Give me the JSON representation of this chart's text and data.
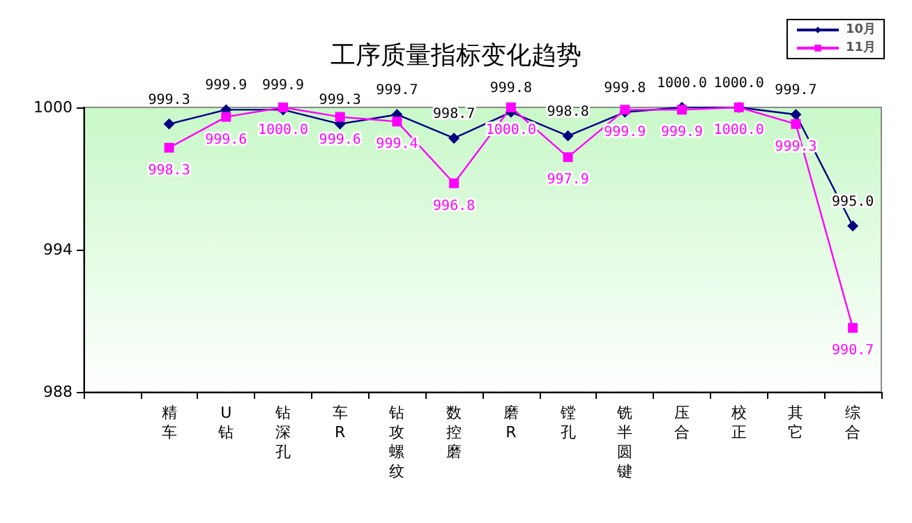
{
  "chart_data": {
    "type": "line",
    "title": "工序质量指标变化趋势",
    "categories": [
      null,
      "精车",
      "U钻",
      "钻深孔",
      "车R",
      "钻攻螺纹",
      "数控磨",
      "磨R",
      "镗孔",
      "铣半圆键",
      "压合",
      "校正",
      "其它",
      "综合"
    ],
    "series": [
      {
        "name": "10月",
        "color": "#000080",
        "marker": "diamond",
        "values": [
          null,
          999.3,
          999.9,
          999.9,
          999.3,
          999.7,
          998.7,
          999.8,
          998.8,
          999.8,
          1000.0,
          1000.0,
          999.7,
          995.0
        ],
        "value_labels": [
          null,
          "999.3",
          "999.9",
          "999.9",
          "999.3",
          "999.7",
          "998.7",
          "999.8",
          "998.8",
          "999.8",
          "1000.0",
          "1000.0",
          "999.7",
          "995.0"
        ]
      },
      {
        "name": "11月",
        "color": "#ff00ff",
        "marker": "square",
        "values": [
          null,
          998.3,
          999.6,
          1000.0,
          999.6,
          999.4,
          996.8,
          1000.0,
          997.9,
          999.9,
          999.9,
          1000.0,
          999.3,
          990.7
        ],
        "value_labels": [
          null,
          "998.3",
          "999.6",
          "1000.0",
          "999.6",
          "999.4",
          "996.8",
          "1000.0",
          "997.9",
          "999.9",
          "999.9",
          "1000.0",
          "999.3",
          "990.7"
        ]
      }
    ],
    "ylim": [
      988,
      1000
    ],
    "yticks": [
      988,
      994,
      1000
    ],
    "grid": false,
    "legend": "top right"
  }
}
